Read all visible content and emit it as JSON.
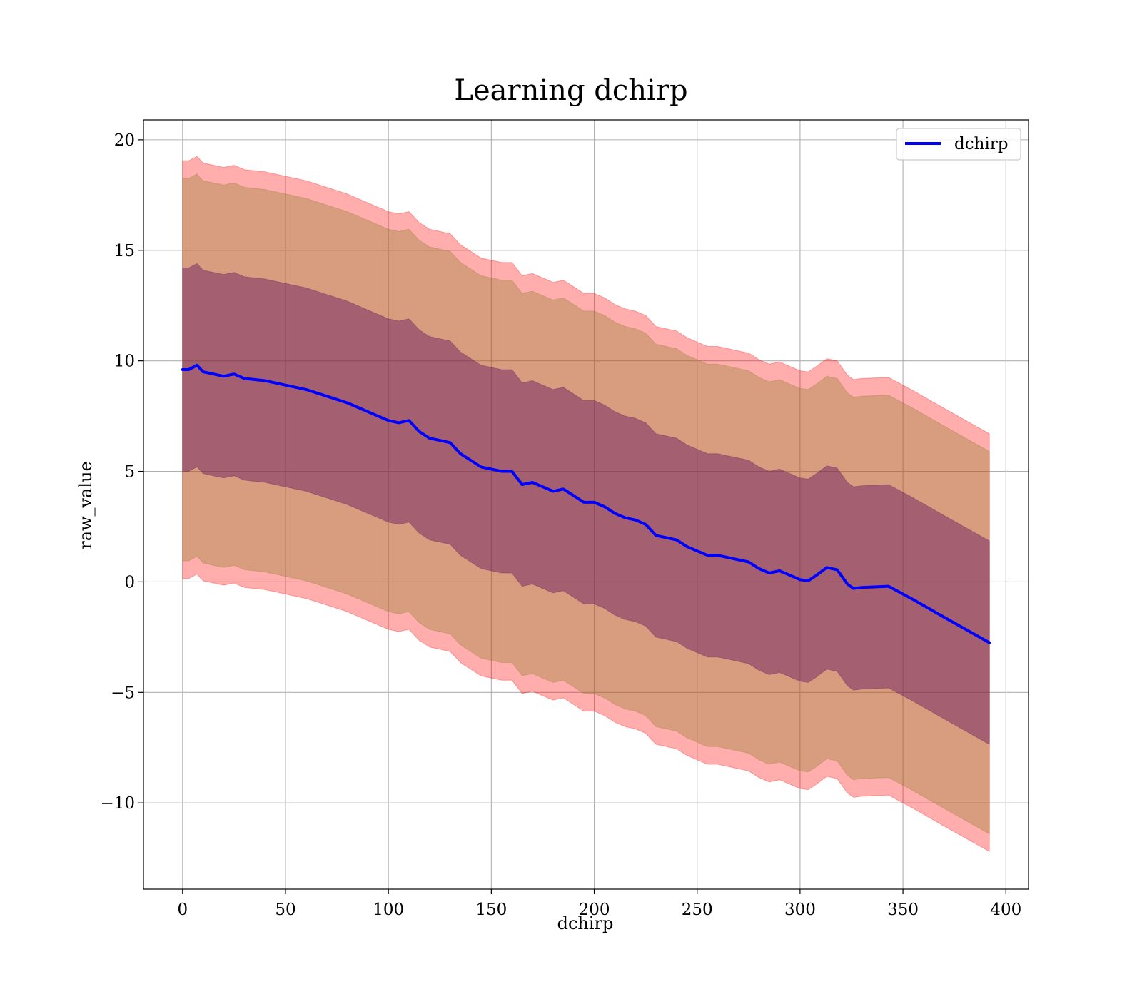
{
  "chart_data": {
    "type": "line",
    "title": "Learning dchirp",
    "xlabel": "dchirp",
    "ylabel": "raw_value",
    "xlim": [
      -19,
      411
    ],
    "ylim": [
      -13.9,
      20.9
    ],
    "xticks": [
      0,
      50,
      100,
      150,
      200,
      250,
      300,
      350,
      400
    ],
    "yticks": [
      -10,
      -5,
      0,
      5,
      10,
      15,
      20
    ],
    "xtick_labels": [
      "0",
      "50",
      "100",
      "150",
      "200",
      "250",
      "300",
      "350",
      "400"
    ],
    "ytick_labels": [
      "−10",
      "−5",
      "0",
      "5",
      "10",
      "15",
      "20"
    ],
    "grid": true,
    "legend": {
      "position": "top-right",
      "entries": [
        "dchirp"
      ]
    },
    "series": [
      {
        "name": "dchirp",
        "color": "#0000ff",
        "x": [
          0,
          3,
          7,
          10,
          15,
          20,
          25,
          30,
          40,
          50,
          60,
          70,
          80,
          90,
          100,
          105,
          110,
          115,
          120,
          125,
          130,
          135,
          140,
          145,
          150,
          155,
          160,
          165,
          170,
          175,
          180,
          185,
          190,
          195,
          200,
          205,
          210,
          215,
          220,
          225,
          230,
          235,
          240,
          245,
          250,
          255,
          260,
          265,
          270,
          275,
          280,
          285,
          290,
          295,
          300,
          304,
          308,
          313,
          318,
          323,
          326,
          330,
          343,
          355,
          370,
          392
        ],
        "y": [
          9.6,
          9.6,
          9.8,
          9.5,
          9.4,
          9.3,
          9.4,
          9.2,
          9.1,
          8.9,
          8.7,
          8.4,
          8.1,
          7.7,
          7.3,
          7.2,
          7.3,
          6.8,
          6.5,
          6.4,
          6.3,
          5.8,
          5.5,
          5.2,
          5.1,
          5.0,
          5.0,
          4.4,
          4.5,
          4.3,
          4.1,
          4.2,
          3.9,
          3.6,
          3.6,
          3.4,
          3.1,
          2.9,
          2.8,
          2.6,
          2.1,
          2.0,
          1.9,
          1.6,
          1.4,
          1.2,
          1.2,
          1.1,
          1.0,
          0.9,
          0.6,
          0.4,
          0.5,
          0.3,
          0.1,
          0.05,
          0.3,
          0.65,
          0.55,
          -0.1,
          -0.3,
          -0.25,
          -0.2,
          -0.8,
          -1.6,
          -2.75
        ]
      }
    ],
    "bands": [
      {
        "name": "outer",
        "color": "#ff0000",
        "opacity": 0.32,
        "half_width": 9.45
      },
      {
        "name": "middle",
        "color": "#8f7f2a",
        "opacity": 0.35,
        "half_width": 8.65
      },
      {
        "name": "inner",
        "color": "#5c0f5c",
        "opacity": 0.42,
        "half_width": 4.6
      }
    ]
  }
}
